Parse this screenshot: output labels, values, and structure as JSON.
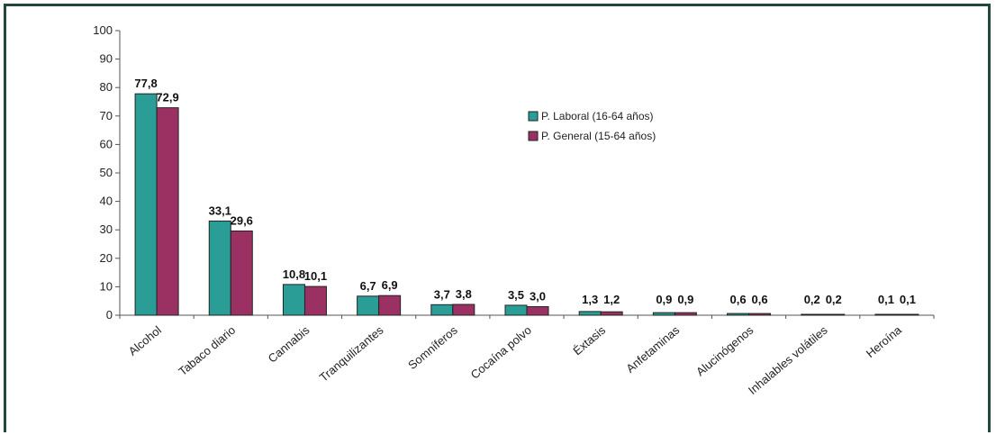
{
  "chart_data": {
    "type": "bar",
    "categories": [
      "Alcohol",
      "Tabaco diario",
      "Cannabis",
      "Tranquilizantes",
      "Somníferos",
      "Cocaína polvo",
      "Éxtasis",
      "Anfetaminas",
      "Alucinógenos",
      "Inhalables volátiles",
      "Heroína"
    ],
    "series": [
      {
        "name": "P. Laboral (16-64 años)",
        "color": "#2a9d96",
        "values": [
          77.8,
          33.1,
          10.8,
          6.7,
          3.7,
          3.5,
          1.3,
          0.9,
          0.6,
          0.2,
          0.1
        ],
        "labels": [
          "77,8",
          "33,1",
          "10,8",
          "6,7",
          "3,7",
          "3,5",
          "1,3",
          "0,9",
          "0,6",
          "0,2",
          "0,1"
        ]
      },
      {
        "name": "P. General (15-64 años)",
        "color": "#9b3163",
        "values": [
          72.9,
          29.6,
          10.1,
          6.9,
          3.8,
          3.0,
          1.2,
          0.9,
          0.6,
          0.2,
          0.1
        ],
        "labels": [
          "72,9",
          "29,6",
          "10,1",
          "6,9",
          "3,8",
          "3,0",
          "1,2",
          "0,9",
          "0,6",
          "0,2",
          "0,1"
        ]
      }
    ],
    "ylim": [
      0,
      100
    ],
    "yticks": [
      0,
      10,
      20,
      30,
      40,
      50,
      60,
      70,
      80,
      90,
      100
    ],
    "grid": false,
    "legend": "top-right",
    "title": "",
    "xlabel": "",
    "ylabel": ""
  }
}
